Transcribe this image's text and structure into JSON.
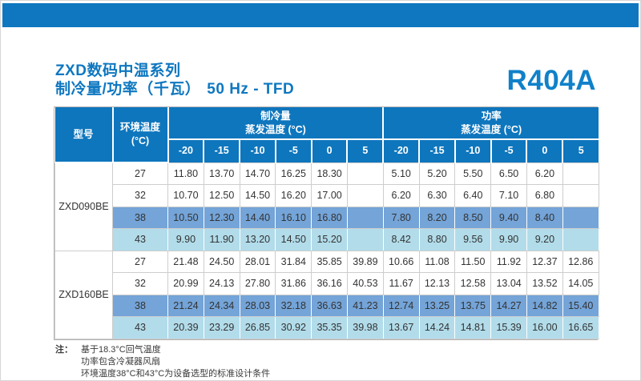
{
  "header": {
    "title_line1": "ZXD数码中温系列",
    "title_line2_cn": "制冷量/功率（千瓦）",
    "title_line2_freq": "50 Hz - TFD",
    "refrigerant": "R404A"
  },
  "colors": {
    "banner_blue": "#0e77c0",
    "header_blue": "#0e76bd",
    "row_38_highlight": "#74a4d8",
    "row_43_highlight": "#b2dcea",
    "title_blue": "#0e77c0"
  },
  "table": {
    "headers": {
      "model": "型号",
      "ambient": "环境温度\n(°C)",
      "group_cooling": "制冷量\n蒸发温度 (°C)",
      "group_power": "功率\n蒸发温度 (°C)"
    },
    "evap_temps": [
      "-20",
      "-15",
      "-10",
      "-5",
      "0",
      "5"
    ],
    "blocks": [
      {
        "model": "ZXD090BE",
        "rows": [
          {
            "ambient": "27",
            "highlight": "none",
            "cooling": [
              "11.80",
              "13.70",
              "14.70",
              "16.25",
              "18.30",
              ""
            ],
            "power": [
              "5.10",
              "5.20",
              "5.50",
              "6.50",
              "6.20",
              ""
            ]
          },
          {
            "ambient": "32",
            "highlight": "none",
            "cooling": [
              "10.70",
              "12.50",
              "14.50",
              "16.20",
              "17.00",
              ""
            ],
            "power": [
              "6.20",
              "6.30",
              "6.40",
              "7.10",
              "6.80",
              ""
            ]
          },
          {
            "ambient": "38",
            "highlight": "blue",
            "cooling": [
              "10.50",
              "12.30",
              "14.40",
              "16.10",
              "16.80",
              ""
            ],
            "power": [
              "7.80",
              "8.20",
              "8.50",
              "9.40",
              "8.40",
              ""
            ]
          },
          {
            "ambient": "43",
            "highlight": "cyan",
            "cooling": [
              "9.90",
              "11.90",
              "13.20",
              "14.50",
              "15.20",
              ""
            ],
            "power": [
              "8.42",
              "8.80",
              "9.56",
              "9.90",
              "9.20",
              ""
            ]
          }
        ]
      },
      {
        "model": "ZXD160BE",
        "rows": [
          {
            "ambient": "27",
            "highlight": "none",
            "cooling": [
              "21.48",
              "24.50",
              "28.01",
              "31.84",
              "35.85",
              "39.89"
            ],
            "power": [
              "10.66",
              "11.08",
              "11.50",
              "11.92",
              "12.37",
              "12.86"
            ]
          },
          {
            "ambient": "32",
            "highlight": "none",
            "cooling": [
              "20.99",
              "24.13",
              "27.80",
              "31.86",
              "36.16",
              "40.53"
            ],
            "power": [
              "11.67",
              "12.13",
              "12.58",
              "13.04",
              "13.52",
              "14.05"
            ]
          },
          {
            "ambient": "38",
            "highlight": "blue",
            "cooling": [
              "21.24",
              "24.34",
              "28.03",
              "32.18",
              "36.63",
              "41.23"
            ],
            "power": [
              "12.74",
              "13.25",
              "13.75",
              "14.27",
              "14.82",
              "15.40"
            ]
          },
          {
            "ambient": "43",
            "highlight": "cyan",
            "cooling": [
              "20.39",
              "23.29",
              "26.85",
              "30.92",
              "35.35",
              "39.98"
            ],
            "power": [
              "13.67",
              "14.24",
              "14.81",
              "15.39",
              "16.00",
              "16.65"
            ]
          }
        ]
      }
    ]
  },
  "footnote": {
    "label": "注：",
    "lines": [
      "基于18.3°C回气温度",
      "功率包含冷凝器风扇",
      "环境温度38°C和43°C为设备选型的标准设计条件"
    ]
  }
}
